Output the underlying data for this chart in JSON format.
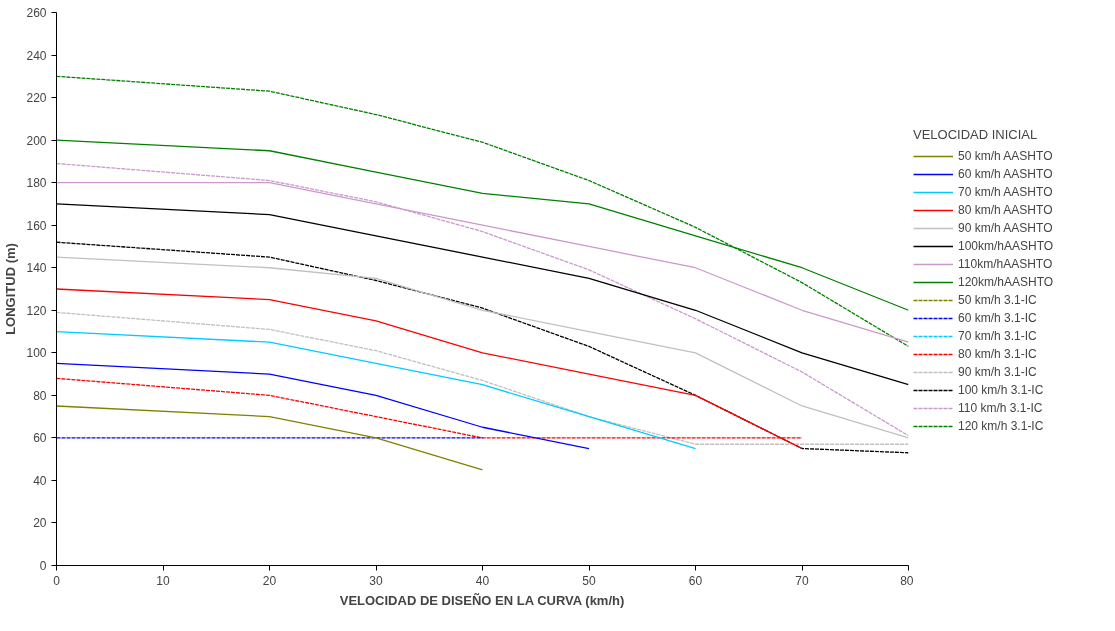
{
  "chart_data": {
    "type": "line",
    "xlabel": "VELOCIDAD DE DISEÑO EN LA CURVA (km/h)",
    "ylabel": "LONGITUD (m)",
    "legend_title": "VELOCIDAD INICIAL",
    "x": [
      0,
      20,
      30,
      40,
      50,
      60,
      70,
      80
    ],
    "xlim": [
      0,
      80
    ],
    "xticks": [
      0,
      10,
      20,
      30,
      40,
      50,
      60,
      70,
      80
    ],
    "ylim": [
      0,
      260
    ],
    "yticks": [
      0,
      20,
      40,
      60,
      80,
      100,
      120,
      140,
      160,
      180,
      200,
      220,
      240,
      260
    ],
    "grid": false,
    "legend": "right",
    "marker": "none",
    "series": [
      {
        "name": "50 km/h AASHTO",
        "color": "#808000",
        "line_style": "solid",
        "values": [
          75,
          70,
          60,
          45,
          null,
          null,
          null,
          null
        ]
      },
      {
        "name": "60 km/h AASHTO",
        "color": "#0000ff",
        "line_style": "solid",
        "values": [
          95,
          90,
          80,
          65,
          55,
          null,
          null,
          null
        ]
      },
      {
        "name": "70 km/h AASHTO",
        "color": "#00ccff",
        "line_style": "solid",
        "values": [
          110,
          105,
          95,
          85,
          70,
          55,
          null,
          null
        ]
      },
      {
        "name": "80 km/h AASHTO",
        "color": "#ff0000",
        "line_style": "solid",
        "values": [
          130,
          125,
          115,
          100,
          90,
          80,
          55,
          null
        ]
      },
      {
        "name": "90 km/h AASHTO",
        "color": "#c0c0c0",
        "line_style": "solid",
        "values": [
          145,
          140,
          135,
          120,
          110,
          100,
          75,
          60
        ]
      },
      {
        "name": "100km/hAASHTO",
        "color": "#000000",
        "line_style": "solid",
        "values": [
          170,
          165,
          155,
          145,
          135,
          120,
          100,
          85
        ]
      },
      {
        "name": "110km/hAASHTO",
        "color": "#cc99cc",
        "line_style": "solid",
        "values": [
          180,
          180,
          170,
          160,
          150,
          140,
          120,
          105
        ]
      },
      {
        "name": "120km/hAASHTO",
        "color": "#008000",
        "line_style": "solid",
        "values": [
          200,
          195,
          185,
          175,
          170,
          155,
          140,
          120
        ]
      },
      {
        "name": "50 km/h 3.1-IC",
        "color": "#808000",
        "line_style": "dashed",
        "values": [
          null,
          null,
          null,
          null,
          null,
          null,
          null,
          null
        ]
      },
      {
        "name": "60 km/h 3.1-IC",
        "color": "#0000ff",
        "line_style": "dashed",
        "values": [
          60,
          60,
          60,
          60,
          null,
          null,
          null,
          null
        ]
      },
      {
        "name": "70 km/h 3.1-IC",
        "color": "#00ccff",
        "line_style": "dashed",
        "values": [
          null,
          null,
          null,
          null,
          null,
          null,
          null,
          null
        ]
      },
      {
        "name": "80 km/h 3.1-IC",
        "color": "#ff0000",
        "line_style": "dashed",
        "values": [
          88,
          80,
          70,
          60,
          60,
          60,
          60,
          null
        ]
      },
      {
        "name": "90 km/h 3.1-IC",
        "color": "#c0c0c0",
        "line_style": "dashed",
        "values": [
          119,
          111,
          101,
          87,
          70,
          57,
          57,
          57
        ]
      },
      {
        "name": "100 km/h 3.1-IC",
        "color": "#000000",
        "line_style": "dashed",
        "values": [
          152,
          145,
          134,
          121,
          103,
          80,
          55,
          53
        ]
      },
      {
        "name": "110 km/h 3.1-IC",
        "color": "#cc99cc",
        "line_style": "dashed",
        "values": [
          189,
          181,
          171,
          157,
          139,
          116,
          91,
          61
        ]
      },
      {
        "name": "120 km/h 3.1-IC",
        "color": "#008000",
        "line_style": "dashed",
        "values": [
          230,
          223,
          212,
          199,
          181,
          159,
          133,
          103
        ]
      }
    ]
  }
}
